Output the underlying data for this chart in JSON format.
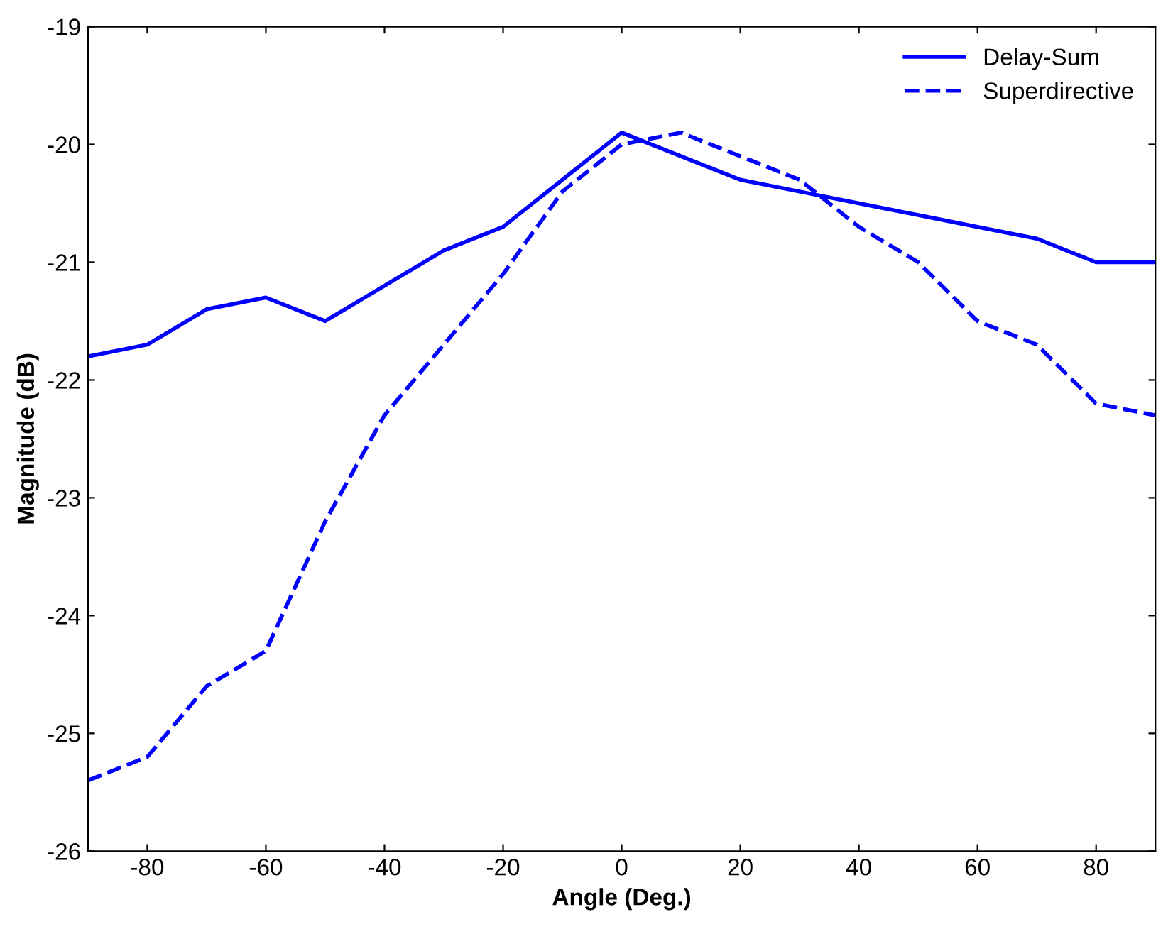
{
  "chart_data": {
    "type": "line",
    "xlabel": "Angle (Deg.)",
    "ylabel": "Magnitude (dB)",
    "x": [
      -90,
      -80,
      -70,
      -60,
      -50,
      -40,
      -30,
      -20,
      -10,
      0,
      10,
      20,
      30,
      40,
      50,
      60,
      70,
      80,
      90
    ],
    "series": [
      {
        "name": "Delay-Sum",
        "color": "#0000ff",
        "line_style": "solid",
        "values": [
          -21.8,
          -21.7,
          -21.4,
          -21.3,
          -21.5,
          -21.2,
          -20.9,
          -20.7,
          -20.3,
          -19.9,
          -20.1,
          -20.3,
          -20.4,
          -20.5,
          -20.6,
          -20.7,
          -20.8,
          -21.0,
          -21.0
        ]
      },
      {
        "name": "Superdirective",
        "color": "#0000ff",
        "line_style": "dashed",
        "values": [
          -25.4,
          -25.2,
          -24.6,
          -24.3,
          -23.2,
          -22.3,
          -21.7,
          -21.1,
          -20.4,
          -20.0,
          -19.9,
          -20.1,
          -20.3,
          -20.7,
          -21.0,
          -21.5,
          -21.7,
          -22.2,
          -22.3
        ]
      }
    ],
    "xlim": [
      -90,
      90
    ],
    "xticks": [
      -80,
      -60,
      -40,
      -20,
      0,
      20,
      40,
      60,
      80
    ],
    "ylim": [
      -26,
      -19
    ],
    "yticks": [
      -26,
      -25,
      -24,
      -23,
      -22,
      -21,
      -20,
      -19
    ],
    "grid": false,
    "legend": "top right",
    "marker": "none"
  }
}
